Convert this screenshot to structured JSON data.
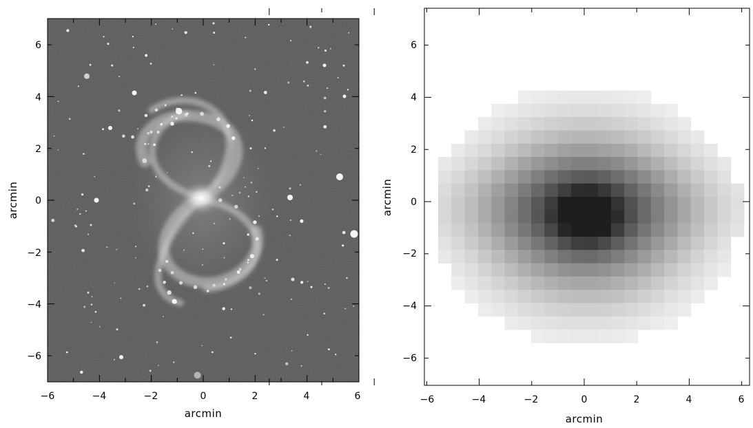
{
  "panels": [
    {
      "id": "optical",
      "xlabel": "arcmin",
      "ylabel": "arcmin",
      "xlim": [
        -6,
        6
      ],
      "ylim": [
        -7,
        7
      ],
      "x_ticks_major": [
        -6,
        -4,
        -2,
        0,
        2,
        4,
        6
      ],
      "y_ticks_major": [
        -6,
        -4,
        -2,
        0,
        2,
        4,
        6
      ],
      "x_tick_labels": [
        "−6",
        "−4",
        "−2",
        "0",
        "2",
        "4",
        "6"
      ],
      "y_tick_labels": [
        "−6",
        "−4",
        "−2",
        "0",
        "2",
        "4",
        "6"
      ],
      "image": "spiral-galaxy-optical-image"
    },
    {
      "id": "smoothed",
      "xlabel": "arcmin",
      "ylabel": "arcmin",
      "xlim": [
        -6.2,
        6.2
      ],
      "ylim": [
        -7.2,
        7.2
      ],
      "x_ticks_major": [
        -6,
        -4,
        -2,
        0,
        2,
        4,
        6
      ],
      "y_ticks_major": [
        -6,
        -4,
        -2,
        0,
        2,
        4,
        6
      ],
      "x_tick_labels": [
        "−6",
        "−4",
        "−2",
        "0",
        "2",
        "4",
        "6"
      ],
      "y_tick_labels": [
        "−6",
        "−4",
        "−2",
        "0",
        "2",
        "4",
        "6"
      ],
      "image": "pixelated-intensity-map"
    }
  ],
  "colors": {
    "background": "#ffffff",
    "axes": "#000000",
    "sky": "#4f4f4f"
  }
}
